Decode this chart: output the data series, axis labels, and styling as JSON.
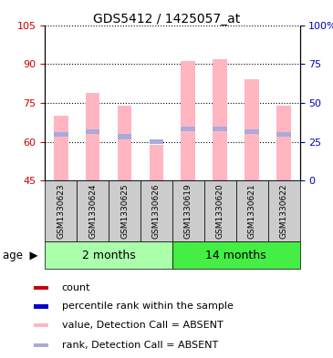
{
  "title": "GDS5412 / 1425057_at",
  "samples": [
    "GSM1330623",
    "GSM1330624",
    "GSM1330625",
    "GSM1330626",
    "GSM1330619",
    "GSM1330620",
    "GSM1330621",
    "GSM1330622"
  ],
  "bar_values": [
    70,
    79,
    74,
    59,
    91,
    92,
    84,
    74
  ],
  "rank_values": [
    63,
    64,
    62,
    60,
    65,
    65,
    64,
    63
  ],
  "ylim_left": [
    45,
    105
  ],
  "ylim_right": [
    0,
    100
  ],
  "yticks_left": [
    45,
    60,
    75,
    90,
    105
  ],
  "yticks_right": [
    0,
    25,
    50,
    75,
    100
  ],
  "bar_color": "#FFB6C1",
  "rank_color": "#AAAADD",
  "group1_label": "2 months",
  "group2_label": "14 months",
  "group1_indices": [
    0,
    1,
    2,
    3
  ],
  "group2_indices": [
    4,
    5,
    6,
    7
  ],
  "group1_color": "#AAFFAA",
  "group2_color": "#44EE44",
  "age_label": "age",
  "legend_items": [
    {
      "color": "#CC0000",
      "label": "count"
    },
    {
      "color": "#0000CC",
      "label": "percentile rank within the sample"
    },
    {
      "color": "#FFB6C1",
      "label": "value, Detection Call = ABSENT"
    },
    {
      "color": "#AAAADD",
      "label": "rank, Detection Call = ABSENT"
    }
  ],
  "left_axis_color": "#CC0000",
  "right_axis_color": "#0000CC",
  "bar_width": 0.45,
  "grid_color": "#000000",
  "background_gray": "#CCCCCC"
}
